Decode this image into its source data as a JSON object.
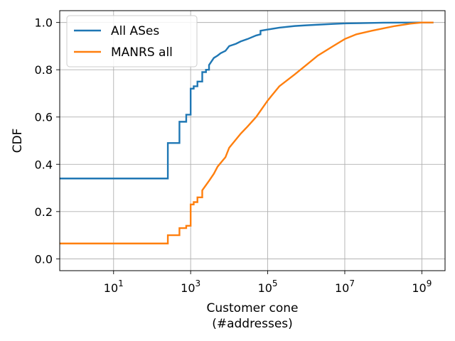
{
  "chart_data": {
    "type": "line",
    "step": true,
    "xscale": "log",
    "xlim": [
      0.4,
      4000000000
    ],
    "ylim": [
      -0.05,
      1.05
    ],
    "grid": true,
    "legend_position": "top-left",
    "xlabel": [
      "Customer cone",
      "(#addresses)"
    ],
    "ylabel": "CDF",
    "xticks": [
      {
        "value": 10,
        "base": "10",
        "exp": "1"
      },
      {
        "value": 1000,
        "base": "10",
        "exp": "3"
      },
      {
        "value": 100000,
        "base": "10",
        "exp": "5"
      },
      {
        "value": 10000000,
        "base": "10",
        "exp": "7"
      },
      {
        "value": 1000000000,
        "base": "10",
        "exp": "9"
      }
    ],
    "yticks": [
      {
        "value": 0.0,
        "label": "0.0"
      },
      {
        "value": 0.2,
        "label": "0.2"
      },
      {
        "value": 0.4,
        "label": "0.4"
      },
      {
        "value": 0.6,
        "label": "0.6"
      },
      {
        "value": 0.8,
        "label": "0.8"
      },
      {
        "value": 1.0,
        "label": "1.0"
      }
    ],
    "series": [
      {
        "name": "All ASes",
        "color": "#1f77b4",
        "x": [
          0.4,
          256,
          256,
          512,
          512,
          768,
          768,
          1000,
          1000,
          1200,
          1200,
          1500,
          1500,
          2000,
          2000,
          2500,
          2500,
          3000,
          3000,
          4000,
          5000,
          6000,
          8000,
          10000,
          15000,
          20000,
          30000,
          50000,
          65000,
          65000,
          100000,
          200000,
          500000,
          1000000,
          5000000,
          10000000,
          100000000,
          1000000000,
          2000000000
        ],
        "y": [
          0.34,
          0.34,
          0.49,
          0.49,
          0.58,
          0.58,
          0.61,
          0.61,
          0.72,
          0.72,
          0.73,
          0.73,
          0.75,
          0.75,
          0.79,
          0.79,
          0.8,
          0.8,
          0.82,
          0.85,
          0.86,
          0.87,
          0.88,
          0.9,
          0.91,
          0.92,
          0.93,
          0.945,
          0.95,
          0.965,
          0.97,
          0.978,
          0.985,
          0.988,
          0.994,
          0.996,
          0.999,
          1.0,
          1.0
        ]
      },
      {
        "name": "MANRS all",
        "color": "#ff7f0e",
        "x": [
          0.4,
          256,
          256,
          512,
          512,
          768,
          768,
          1000,
          1000,
          1200,
          1200,
          1500,
          1500,
          2000,
          2000,
          3000,
          4000,
          5000,
          8000,
          10000,
          20000,
          30000,
          50000,
          100000,
          200000,
          500000,
          1000000,
          2000000,
          5000000,
          10000000,
          20000000,
          50000000,
          100000000,
          200000000,
          500000000,
          1000000000,
          2000000000
        ],
        "y": [
          0.065,
          0.065,
          0.1,
          0.1,
          0.13,
          0.13,
          0.14,
          0.14,
          0.23,
          0.23,
          0.24,
          0.24,
          0.26,
          0.26,
          0.29,
          0.33,
          0.36,
          0.39,
          0.43,
          0.47,
          0.53,
          0.56,
          0.6,
          0.67,
          0.73,
          0.78,
          0.82,
          0.86,
          0.9,
          0.93,
          0.95,
          0.965,
          0.975,
          0.985,
          0.995,
          1.0,
          1.0
        ]
      }
    ]
  }
}
